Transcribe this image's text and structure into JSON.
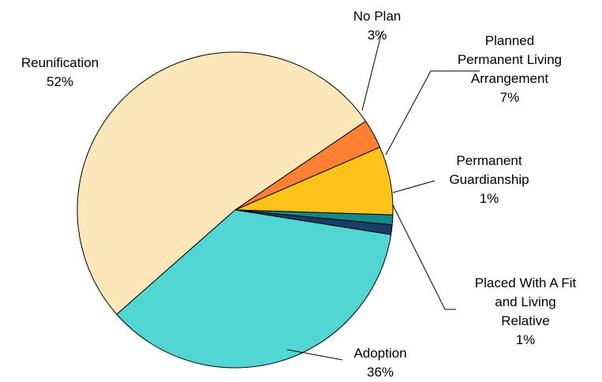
{
  "chart_data": {
    "type": "pie",
    "slices": [
      {
        "label_lines": [
          "Reunification"
        ],
        "value": 52,
        "value_label": "52%",
        "color": "#FDE6BA"
      },
      {
        "label_lines": [
          "No Plan"
        ],
        "value": 3,
        "value_label": "3%",
        "color": "#FF8033"
      },
      {
        "label_lines": [
          "Planned",
          "Permanent Living",
          "Arrangement"
        ],
        "value": 7,
        "value_label": "7%",
        "color": "#FFC21A"
      },
      {
        "label_lines": [
          "Permanent",
          "Guardianship"
        ],
        "value": 1,
        "value_label": "1%",
        "color": "#138A8A"
      },
      {
        "label_lines": [
          "Placed With A Fit",
          "and Living",
          "Relative"
        ],
        "value": 1,
        "value_label": "1%",
        "color": "#163E6A"
      },
      {
        "label_lines": [
          "Adoption"
        ],
        "value": 36,
        "value_label": "36%",
        "color": "#52D6D3"
      }
    ]
  }
}
